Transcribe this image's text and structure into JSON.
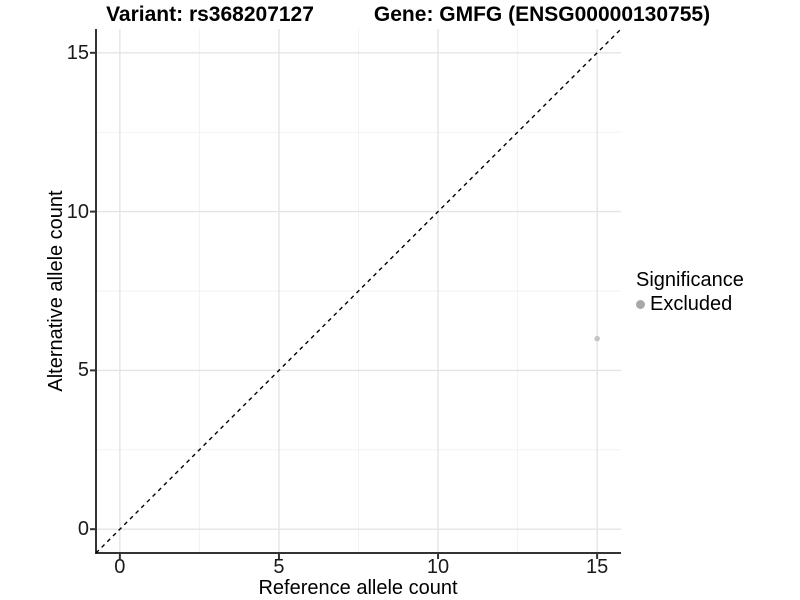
{
  "header": {
    "title_variant": "Variant: rs368207127",
    "title_gene": "Gene: GMFG (ENSG00000130755)"
  },
  "chart_data": {
    "type": "scatter",
    "title": "Variant: rs368207127 — Gene: GMFG (ENSG00000130755)",
    "xlabel": "Reference allele count",
    "ylabel": "Alternative allele count",
    "xlim": [
      -0.75,
      15.75
    ],
    "ylim": [
      -0.75,
      15.75
    ],
    "x_ticks": [
      0,
      5,
      10,
      15
    ],
    "y_ticks": [
      0,
      5,
      10,
      15
    ],
    "x_minor_ticks": [
      2.5,
      7.5,
      12.5
    ],
    "y_minor_ticks": [
      2.5,
      7.5,
      12.5
    ],
    "grid": true,
    "reference_line": {
      "type": "identity",
      "from": [
        -0.75,
        -0.75
      ],
      "to": [
        15.75,
        15.75
      ],
      "style": "dashed",
      "color": "#000000"
    },
    "series": [
      {
        "name": "Excluded",
        "color": "#c5c5c5",
        "points": [
          {
            "x": 15,
            "y": 6
          }
        ]
      }
    ],
    "legend": {
      "title": "Significance",
      "position": "right",
      "items": [
        {
          "label": "Excluded",
          "color": "#a8a8a8"
        }
      ]
    }
  },
  "style": {
    "background": "#ffffff",
    "text_color": "#000000",
    "axis_color": "#333333",
    "grid_major_color": "#e4e4e4",
    "grid_minor_color": "#f2f2f2",
    "point_color": "#c5c5c5",
    "legend_dot_color": "#a8a8a8",
    "ref_line_color": "#000000"
  }
}
